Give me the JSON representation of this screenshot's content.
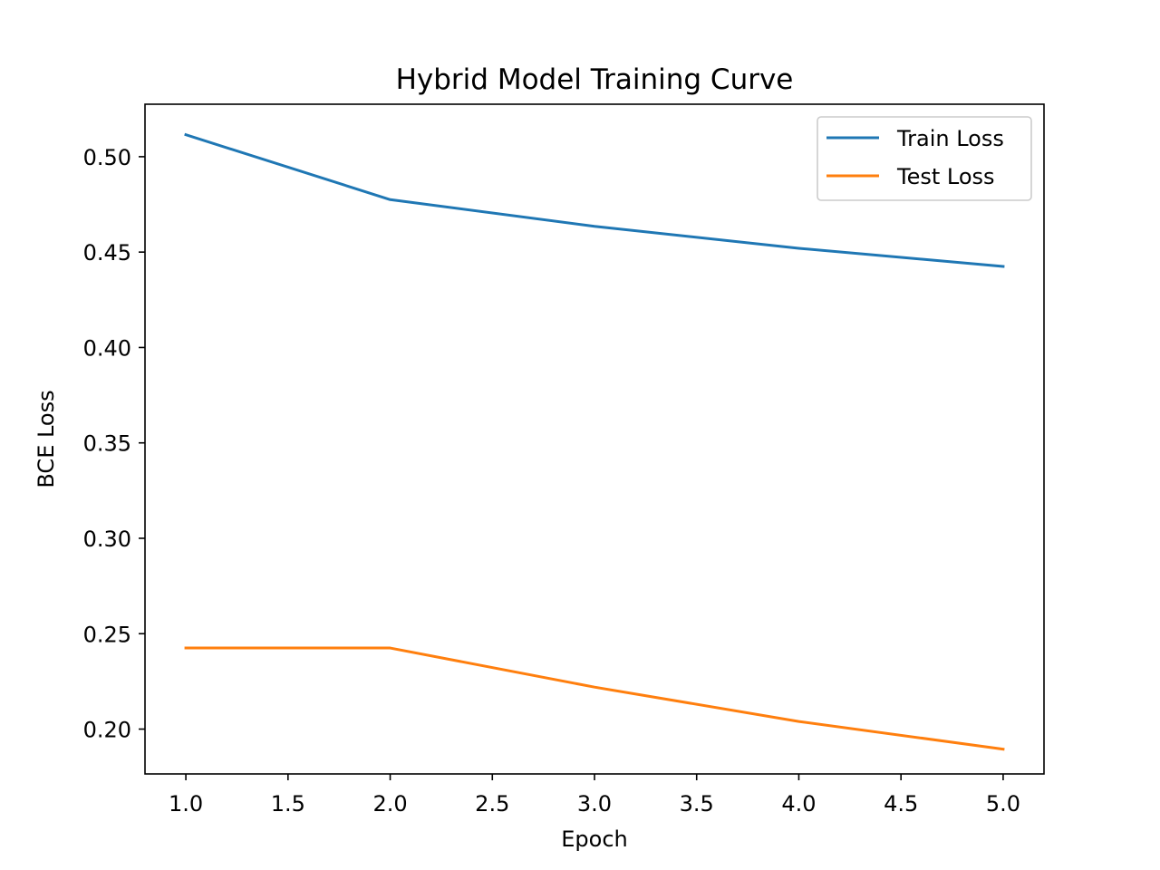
{
  "chart_data": {
    "type": "line",
    "title": "Hybrid Model Training Curve",
    "xlabel": "Epoch",
    "ylabel": "BCE Loss",
    "x": [
      1,
      2,
      3,
      4,
      5
    ],
    "xlim": [
      0.8,
      5.2
    ],
    "ylim": [
      0.1765,
      0.5275
    ],
    "xticks": [
      1.0,
      1.5,
      2.0,
      2.5,
      3.0,
      3.5,
      4.0,
      4.5,
      5.0
    ],
    "xtick_labels": [
      "1.0",
      "1.5",
      "2.0",
      "2.5",
      "3.0",
      "3.5",
      "4.0",
      "4.5",
      "5.0"
    ],
    "yticks": [
      0.2,
      0.25,
      0.3,
      0.35,
      0.4,
      0.45,
      0.5
    ],
    "ytick_labels": [
      "0.20",
      "0.25",
      "0.30",
      "0.35",
      "0.40",
      "0.45",
      "0.50"
    ],
    "grid": false,
    "legend_position": "top-right",
    "series": [
      {
        "name": "Train Loss",
        "color": "#1f77b4",
        "values": [
          0.5115,
          0.4775,
          0.4635,
          0.452,
          0.4425
        ]
      },
      {
        "name": "Test Loss",
        "color": "#ff7f0e",
        "values": [
          0.2425,
          0.2425,
          0.222,
          0.204,
          0.1895
        ]
      }
    ]
  }
}
